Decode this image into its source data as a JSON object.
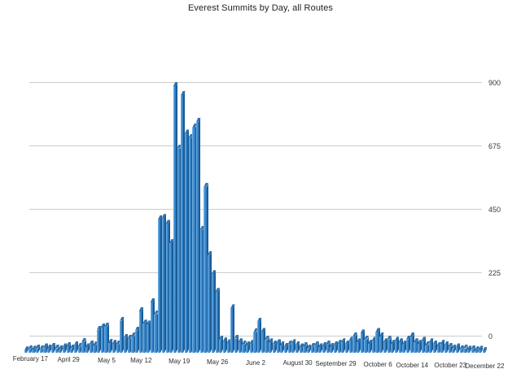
{
  "chart_data": {
    "type": "bar",
    "title": "Everest Summits by Day, all Routes",
    "xlabel": "",
    "ylabel": "",
    "ylim": [
      0,
      900
    ],
    "y_ticks": [
      900,
      675,
      450,
      225,
      0
    ],
    "y_axis_side": "right",
    "grid": "horizontal",
    "style": "3d-column",
    "x_tick_labels": [
      {
        "index": 1,
        "label": "February 17"
      },
      {
        "index": 11,
        "label": "April 29"
      },
      {
        "index": 21,
        "label": "May 5"
      },
      {
        "index": 30,
        "label": "May 12"
      },
      {
        "index": 40,
        "label": "May 19"
      },
      {
        "index": 50,
        "label": "May 26"
      },
      {
        "index": 60,
        "label": "June 2"
      },
      {
        "index": 71,
        "label": "August 30"
      },
      {
        "index": 81,
        "label": "September 29"
      },
      {
        "index": 92,
        "label": "October 6"
      },
      {
        "index": 101,
        "label": "October 14"
      },
      {
        "index": 111,
        "label": "October 23"
      },
      {
        "index": 120,
        "label": "December 22"
      }
    ],
    "values": [
      8,
      12,
      10,
      15,
      12,
      18,
      14,
      20,
      15,
      12,
      18,
      22,
      15,
      25,
      20,
      36,
      18,
      28,
      24,
      78,
      85,
      88,
      33,
      30,
      28,
      108,
      50,
      47,
      55,
      75,
      140,
      98,
      95,
      170,
      130,
      450,
      455,
      435,
      370,
      900,
      690,
      870,
      740,
      725,
      760,
      780,
      415,
      560,
      330,
      265,
      205,
      45,
      38,
      32,
      150,
      48,
      35,
      28,
      25,
      30,
      69,
      105,
      70,
      45,
      35,
      28,
      32,
      25,
      20,
      28,
      32,
      25,
      18,
      22,
      15,
      20,
      25,
      18,
      22,
      28,
      20,
      25,
      30,
      35,
      28,
      40,
      55,
      35,
      65,
      45,
      30,
      40,
      70,
      55,
      35,
      45,
      30,
      40,
      35,
      28,
      45,
      55,
      35,
      30,
      40,
      25,
      35,
      28,
      22,
      30,
      25,
      20,
      15,
      18,
      12,
      15,
      10,
      12,
      8,
      10,
      6
    ]
  },
  "colors": {
    "bar_front": "#3E8DD1",
    "bar_front_highlight": "#7CB8E8",
    "bar_front_shade": "#2E79BE",
    "bar_side": "#1B5B93",
    "bar_top": "#2F72AF",
    "gridline": "#cccccc",
    "text": "#2e2e2e",
    "background": "#ffffff"
  }
}
